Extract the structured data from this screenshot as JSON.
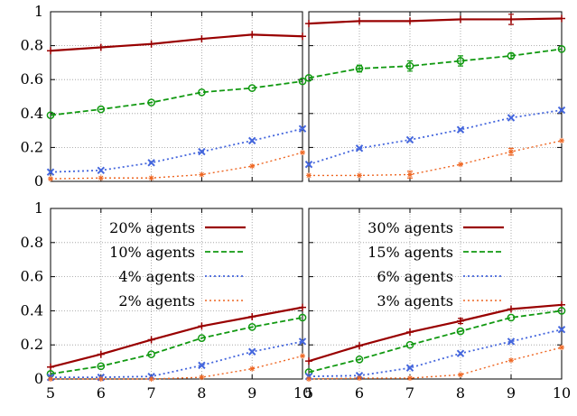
{
  "chart_data": {
    "type": "line",
    "x": [
      5,
      6,
      7,
      8,
      9,
      10
    ],
    "xlim": [
      5,
      10
    ],
    "ylim": [
      0,
      1
    ],
    "x_ticks": [
      "5",
      "6",
      "7",
      "8",
      "9",
      "10"
    ],
    "y_ticks": [
      "0",
      "0.2",
      "0.4",
      "0.6",
      "0.8",
      "1"
    ],
    "grid": true,
    "legend_placement": "top-left",
    "series_style": {
      "colors": [
        "#990000",
        "#119911",
        "#4466dd",
        "#ee6622"
      ],
      "dashes": [
        "solid",
        "dashed",
        "dotted",
        "dotted"
      ],
      "markers": [
        "plus",
        "circle",
        "cross",
        "star"
      ]
    },
    "panels": [
      {
        "position": "top-left",
        "show_legend": false,
        "series": [
          {
            "name": "",
            "values": [
              0.77,
              0.79,
              0.81,
              0.84,
              0.865,
              0.855
            ],
            "errors": [
              0,
              0,
              0,
              0,
              0,
              0
            ]
          },
          {
            "name": "",
            "values": [
              0.39,
              0.425,
              0.465,
              0.525,
              0.55,
              0.59
            ],
            "errors": [
              0,
              0,
              0,
              0,
              0,
              0
            ]
          },
          {
            "name": "",
            "values": [
              0.055,
              0.065,
              0.11,
              0.175,
              0.24,
              0.31
            ],
            "errors": [
              0,
              0,
              0,
              0,
              0,
              0
            ]
          },
          {
            "name": "",
            "values": [
              0.015,
              0.02,
              0.02,
              0.04,
              0.09,
              0.17
            ],
            "errors": [
              0,
              0,
              0,
              0,
              0,
              0
            ]
          }
        ]
      },
      {
        "position": "top-right",
        "show_legend": false,
        "series": [
          {
            "name": "",
            "values": [
              0.93,
              0.945,
              0.945,
              0.955,
              0.955,
              0.96
            ],
            "errors": [
              0,
              0,
              0,
              0,
              0.03,
              0
            ]
          },
          {
            "name": "",
            "values": [
              0.61,
              0.665,
              0.68,
              0.71,
              0.74,
              0.78
            ],
            "errors": [
              0,
              0.02,
              0.03,
              0.03,
              0.015,
              0
            ]
          },
          {
            "name": "",
            "values": [
              0.1,
              0.195,
              0.245,
              0.305,
              0.375,
              0.42
            ],
            "errors": [
              0,
              0,
              0,
              0,
              0,
              0
            ]
          },
          {
            "name": "",
            "values": [
              0.035,
              0.035,
              0.04,
              0.1,
              0.175,
              0.24
            ],
            "errors": [
              0,
              0,
              0.02,
              0,
              0.02,
              0
            ]
          }
        ]
      },
      {
        "position": "bottom-left",
        "show_legend": true,
        "series": [
          {
            "name": "20% agents",
            "values": [
              0.07,
              0.145,
              0.23,
              0.31,
              0.365,
              0.42
            ],
            "errors": [
              0,
              0,
              0,
              0,
              0,
              0
            ]
          },
          {
            "name": "10% agents",
            "values": [
              0.03,
              0.075,
              0.145,
              0.24,
              0.305,
              0.36
            ],
            "errors": [
              0,
              0,
              0,
              0,
              0,
              0
            ]
          },
          {
            "name": "4% agents",
            "values": [
              0.01,
              0.01,
              0.015,
              0.08,
              0.16,
              0.22
            ],
            "errors": [
              0,
              0,
              0,
              0,
              0,
              0
            ]
          },
          {
            "name": "2% agents",
            "values": [
              0.0,
              0.0,
              0.0,
              0.01,
              0.06,
              0.135
            ],
            "errors": [
              0,
              0,
              0,
              0,
              0,
              0
            ]
          }
        ]
      },
      {
        "position": "bottom-right",
        "show_legend": true,
        "series": [
          {
            "name": "30% agents",
            "values": [
              0.105,
              0.195,
              0.275,
              0.34,
              0.41,
              0.435
            ],
            "errors": [
              0,
              0,
              0,
              0.015,
              0,
              0
            ]
          },
          {
            "name": "15% agents",
            "values": [
              0.04,
              0.115,
              0.2,
              0.28,
              0.36,
              0.4
            ],
            "errors": [
              0,
              0,
              0,
              0,
              0,
              0
            ]
          },
          {
            "name": "6% agents",
            "values": [
              0.015,
              0.02,
              0.065,
              0.15,
              0.22,
              0.29
            ],
            "errors": [
              0,
              0,
              0,
              0,
              0,
              0
            ]
          },
          {
            "name": "3% agents",
            "values": [
              0.0,
              0.005,
              0.005,
              0.025,
              0.11,
              0.185
            ],
            "errors": [
              0,
              0,
              0,
              0,
              0,
              0
            ]
          }
        ]
      }
    ]
  }
}
